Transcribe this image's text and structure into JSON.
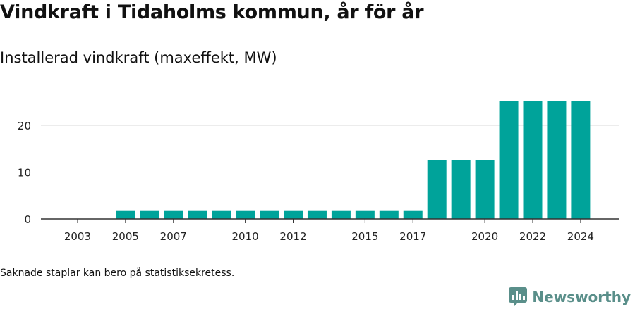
{
  "header": {
    "title": "Vindkraft i Tidaholms kommun, år för år",
    "subtitle": "Installerad vindkraft (maxeffekt, MW)"
  },
  "footer": {
    "note": "Saknade staplar kan bero på statistiksekretess.",
    "brand": "Newsworthy"
  },
  "colors": {
    "bar": "#00a39a",
    "grid": "#d9d9d9",
    "axis": "#333333",
    "brand": "#5a8f8a"
  },
  "chart_data": {
    "type": "bar",
    "categories": [
      "2002",
      "2003",
      "2004",
      "2005",
      "2006",
      "2007",
      "2008",
      "2009",
      "2010",
      "2011",
      "2012",
      "2013",
      "2014",
      "2015",
      "2016",
      "2017",
      "2018",
      "2019",
      "2020",
      "2021",
      "2022",
      "2023",
      "2024"
    ],
    "values": [
      null,
      null,
      null,
      1.7,
      1.7,
      1.7,
      1.7,
      1.7,
      1.7,
      1.7,
      1.7,
      1.7,
      1.7,
      1.7,
      1.7,
      1.7,
      12.5,
      12.5,
      12.5,
      25.2,
      25.2,
      25.2,
      25.2
    ],
    "xtick_labels": [
      "2003",
      "2005",
      "2007",
      "2010",
      "2012",
      "2015",
      "2017",
      "2020",
      "2022",
      "2024"
    ],
    "yticks": [
      0,
      10,
      20
    ],
    "ylim": [
      0,
      28
    ],
    "grid": true,
    "xlabel": "",
    "ylabel": ""
  }
}
